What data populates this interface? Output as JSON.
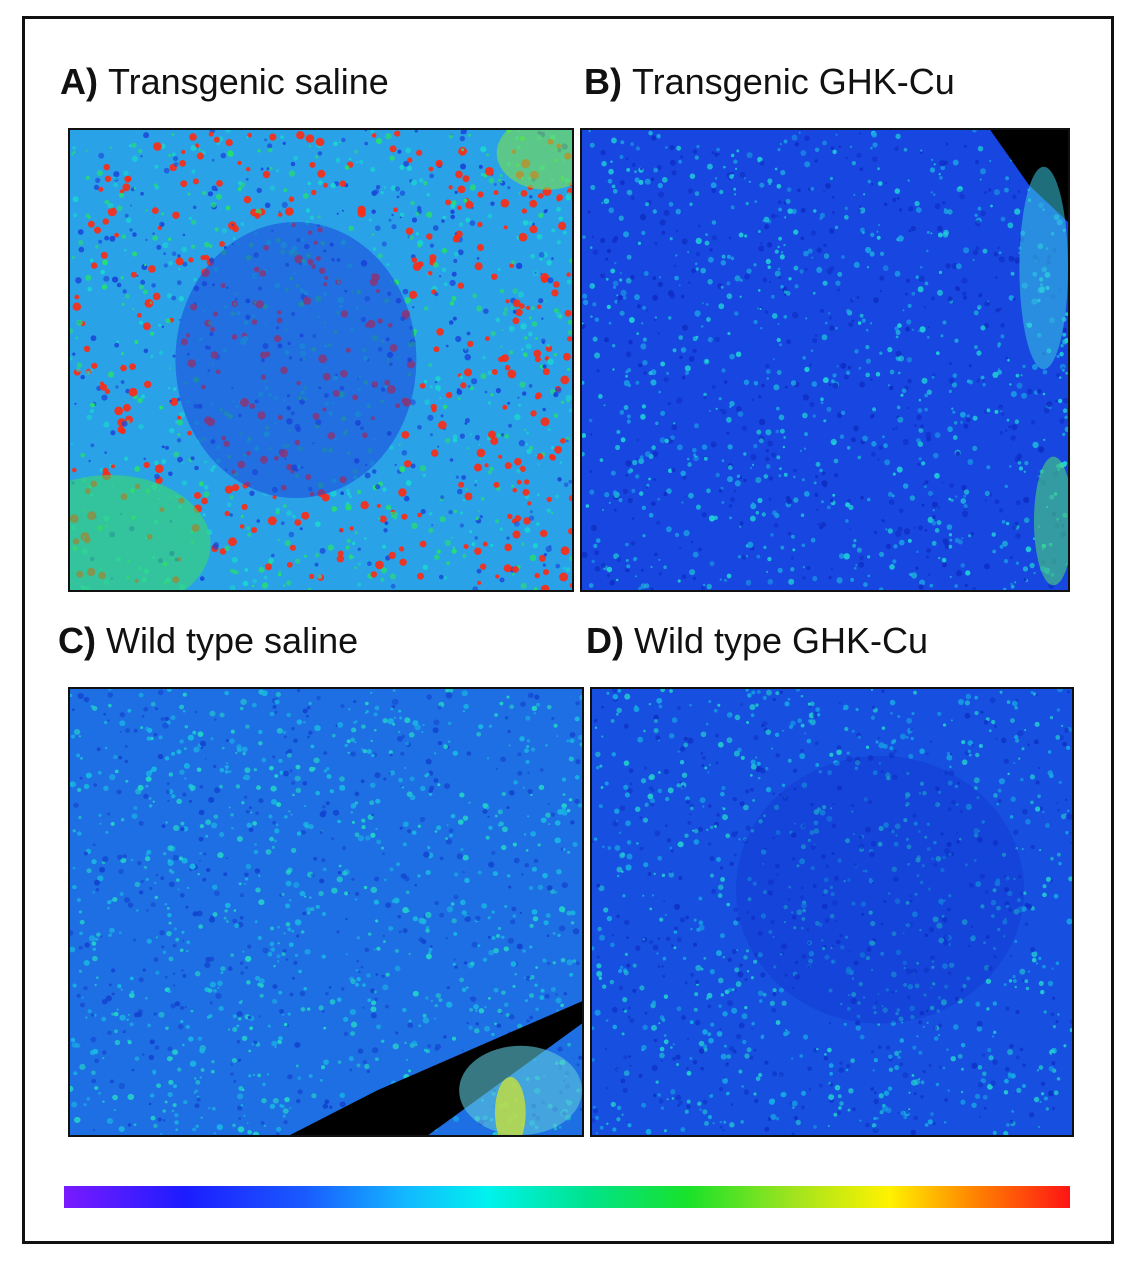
{
  "panels": [
    {
      "id": "A",
      "letter": "A)",
      "title": "Transgenic saline",
      "base": "#2aa2e8",
      "dots": [
        "#19d7d0",
        "#25e26a",
        "#ff2a12",
        "#1a45d8"
      ]
    },
    {
      "id": "B",
      "letter": "B)",
      "title": "Transgenic GHK-Cu",
      "base": "#1746e0",
      "dots": [
        "#1aa0e6",
        "#1fd0d8",
        "#0f2ec4"
      ]
    },
    {
      "id": "C",
      "letter": "C)",
      "title": "Wild type saline",
      "base": "#1f6fe4",
      "dots": [
        "#18b8e4",
        "#22d6c8",
        "#1244d0"
      ]
    },
    {
      "id": "D",
      "letter": "D)",
      "title": "Wild type GHK-Cu",
      "base": "#1750e0",
      "dots": [
        "#16a8e6",
        "#22d0d0",
        "#0f33c8"
      ]
    }
  ],
  "colorbar": {
    "colors": [
      "#7a1aff",
      "#1c1cff",
      "#1a5bff",
      "#13b8ff",
      "#00f2ee",
      "#00e38d",
      "#18e22a",
      "#9be31f",
      "#fff200",
      "#ff8a00",
      "#ff1414"
    ]
  }
}
